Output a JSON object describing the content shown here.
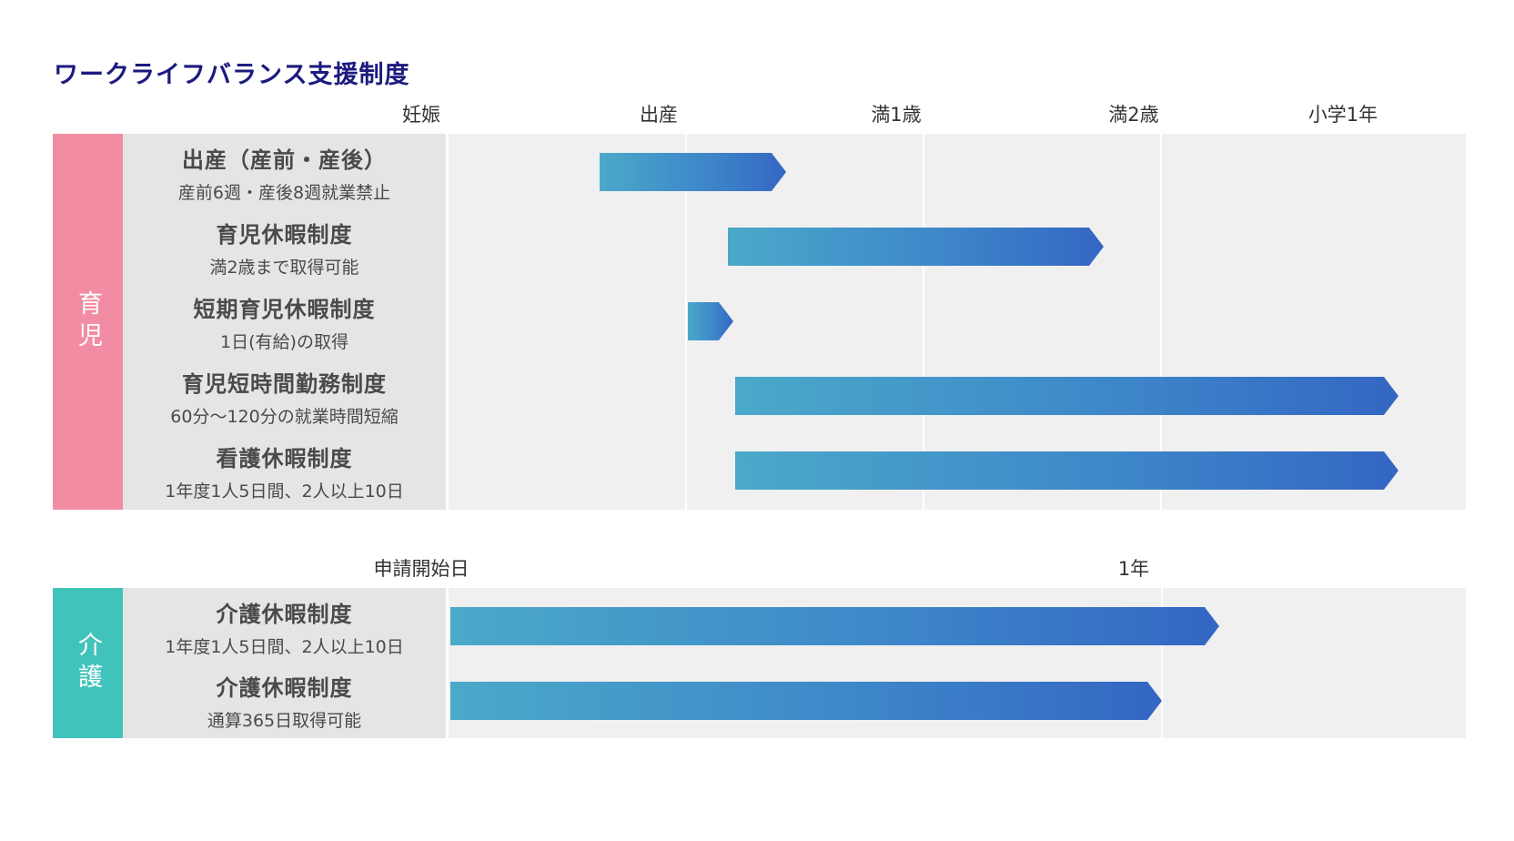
{
  "title": "ワークライフバランス支援制度",
  "childcare": {
    "category": "育児",
    "category_color": "#f28ca3",
    "axis": [
      "妊娠",
      "出産",
      "満1歳",
      "満2歳",
      "小学1年"
    ],
    "rows": [
      {
        "name": "出産（産前・産後）",
        "sub": "産前6週・産後8週就業禁止",
        "start": 0.63,
        "end": 1.42
      },
      {
        "name": "育児休暇制度",
        "sub": "満2歳まで取得可能",
        "start": 1.17,
        "end": 2.76
      },
      {
        "name": "短期育児休暇制度",
        "sub": "1日(有給)の取得",
        "start": 1.0,
        "end": 1.2
      },
      {
        "name": "育児短時間勤務制度",
        "sub": "60分〜120分の就業時間短縮",
        "start": 1.2,
        "end": 4.0
      },
      {
        "name": "看護休暇制度",
        "sub": "1年度1人5日間、2人以上10日",
        "start": 1.2,
        "end": 4.0
      }
    ]
  },
  "nursing": {
    "category": "介護",
    "category_color": "#40c3bb",
    "axis": [
      "申請開始日",
      "1年"
    ],
    "rows": [
      {
        "name": "介護休暇制度",
        "sub": "1年度1人5日間、2人以上10日",
        "start": 0.0,
        "end": 1.08
      },
      {
        "name": "介護休暇制度",
        "sub": "通算365日取得可能",
        "start": 0.0,
        "end": 1.0
      }
    ]
  }
}
